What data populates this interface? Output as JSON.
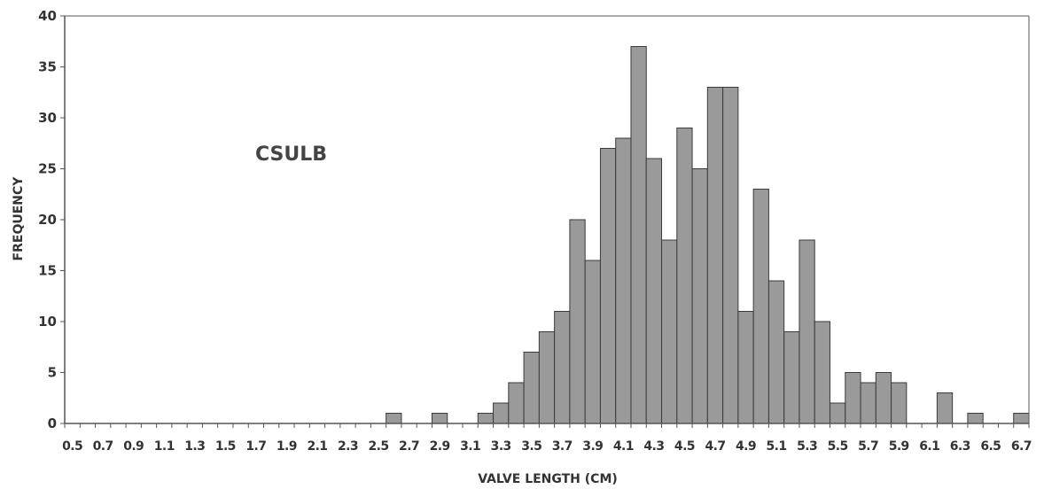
{
  "chart_data": {
    "type": "bar",
    "title": "",
    "annotation": "CSULB",
    "xlabel": "VALVE LENGTH (CM)",
    "ylabel": "FREQUENCY",
    "ylim": [
      0,
      40
    ],
    "y_ticks": [
      0,
      5,
      10,
      15,
      20,
      25,
      30,
      35,
      40
    ],
    "x_tick_labels": [
      "0.5",
      "0.7",
      "0.9",
      "1.1",
      "1.3",
      "1.5",
      "1.7",
      "1.9",
      "2.1",
      "2.3",
      "2.5",
      "2.7",
      "2.9",
      "3.1",
      "3.3",
      "3.5",
      "3.7",
      "3.9",
      "4.1",
      "4.3",
      "4.5",
      "4.7",
      "4.9",
      "5.1",
      "5.3",
      "5.5",
      "5.7",
      "5.9",
      "6.1",
      "6.3",
      "6.5",
      "6.7"
    ],
    "grid": false,
    "legend": "none",
    "bar_color": "#9a9a9a",
    "categories": [
      "0.5",
      "0.6",
      "0.7",
      "0.8",
      "0.9",
      "1.0",
      "1.1",
      "1.2",
      "1.3",
      "1.4",
      "1.5",
      "1.6",
      "1.7",
      "1.8",
      "1.9",
      "2.0",
      "2.1",
      "2.2",
      "2.3",
      "2.4",
      "2.5",
      "2.6",
      "2.7",
      "2.8",
      "2.9",
      "3.0",
      "3.1",
      "3.2",
      "3.3",
      "3.4",
      "3.5",
      "3.6",
      "3.7",
      "3.8",
      "3.9",
      "4.0",
      "4.1",
      "4.2",
      "4.3",
      "4.4",
      "4.5",
      "4.6",
      "4.7",
      "4.8",
      "4.9",
      "5.0",
      "5.1",
      "5.2",
      "5.3",
      "5.4",
      "5.5",
      "5.6",
      "5.7",
      "5.8",
      "5.9",
      "6.0",
      "6.1",
      "6.2",
      "6.3",
      "6.4",
      "6.5",
      "6.6",
      "6.7"
    ],
    "values": [
      0,
      0,
      0,
      0,
      0,
      0,
      0,
      0,
      0,
      0,
      0,
      0,
      0,
      0,
      0,
      0,
      0,
      0,
      0,
      0,
      0,
      1,
      0,
      0,
      1,
      0,
      0,
      1,
      2,
      4,
      7,
      9,
      11,
      20,
      16,
      27,
      28,
      37,
      26,
      18,
      29,
      25,
      33,
      33,
      11,
      23,
      14,
      9,
      18,
      10,
      2,
      5,
      4,
      5,
      4,
      0,
      0,
      3,
      0,
      1,
      0,
      0,
      1
    ]
  }
}
